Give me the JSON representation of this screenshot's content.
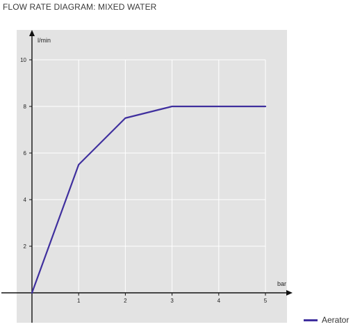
{
  "title": "FLOW RATE DIAGRAM: MIXED WATER",
  "colors": {
    "plot_background": "#e3e3e3",
    "grid": "#ffffff",
    "axis": "#111111",
    "series_line": "#3f2f9e"
  },
  "chart_data": {
    "type": "line",
    "xlabel": "bar",
    "ylabel": "l/min",
    "xlim": [
      0,
      5
    ],
    "ylim": [
      0,
      10
    ],
    "x_ticks": [
      1,
      2,
      3,
      4,
      5
    ],
    "y_ticks": [
      2,
      4,
      6,
      8,
      10
    ],
    "grid": true,
    "legend": "bottom-right",
    "series": [
      {
        "name": "Aerator",
        "x": [
          0,
          1,
          2,
          3,
          4,
          5
        ],
        "y": [
          0,
          5.5,
          7.5,
          8,
          8,
          8
        ]
      }
    ]
  }
}
